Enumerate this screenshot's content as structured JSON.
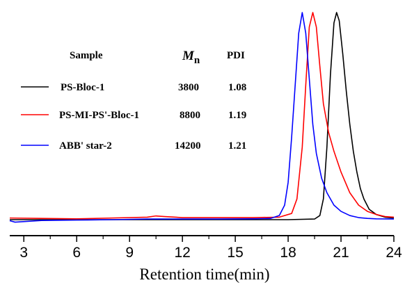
{
  "chart_data": {
    "type": "line",
    "xlabel": "Retention time(min)",
    "ylabel": "",
    "xlim": [
      2.2,
      24
    ],
    "x_ticks": [
      3,
      6,
      9,
      12,
      15,
      18,
      21,
      24
    ],
    "x_tick_labels": [
      "3",
      "6",
      "9",
      "12",
      "15",
      "18",
      "21",
      "24"
    ],
    "grid": false,
    "legend": {
      "placement": "top-left",
      "headers": {
        "sample": "Sample",
        "mn_main": "M",
        "mn_sub": "n",
        "pdi": "PDI"
      },
      "rows": [
        {
          "sample": "PS-Bloc-1",
          "mn": "3800",
          "pdi": "1.08",
          "color": "#000000"
        },
        {
          "sample": "PS-MI-PS'-Bloc-1",
          "mn": "8800",
          "pdi": "1.19",
          "color": "#ff0000"
        },
        {
          "sample": "ABB' star-2",
          "mn": "14200",
          "pdi": "1.21",
          "color": "#0000ff"
        }
      ]
    },
    "series": [
      {
        "name": "PS-Bloc-1",
        "color": "#000000",
        "x": [
          2.2,
          4,
          6,
          8,
          10,
          12,
          14,
          16,
          18,
          19.5,
          19.8,
          20.0,
          20.2,
          20.4,
          20.6,
          20.75,
          20.9,
          21.1,
          21.3,
          21.5,
          21.7,
          21.9,
          22.1,
          22.3,
          22.6,
          23.0,
          23.5,
          24.0
        ],
        "y": [
          0.0,
          0.0,
          0.0,
          0.0,
          0.0,
          0.0,
          0.0,
          0.0,
          0.0,
          0.003,
          0.02,
          0.1,
          0.35,
          0.7,
          0.95,
          1.0,
          0.96,
          0.8,
          0.62,
          0.46,
          0.33,
          0.23,
          0.15,
          0.1,
          0.05,
          0.025,
          0.012,
          0.008
        ]
      },
      {
        "name": "PS-MI-PS'-Bloc-1",
        "color": "#ff0000",
        "x": [
          2.2,
          4,
          6,
          8,
          10,
          10.5,
          11,
          12,
          14,
          16,
          17.5,
          18.2,
          18.5,
          18.8,
          19.0,
          19.2,
          19.4,
          19.6,
          19.8,
          20.0,
          20.3,
          20.6,
          21.0,
          21.5,
          22.0,
          22.5,
          23.0,
          23.5,
          24.0
        ],
        "y": [
          0.008,
          0.006,
          0.004,
          0.008,
          0.012,
          0.018,
          0.015,
          0.01,
          0.01,
          0.01,
          0.012,
          0.03,
          0.1,
          0.35,
          0.65,
          0.93,
          1.0,
          0.93,
          0.74,
          0.56,
          0.42,
          0.33,
          0.23,
          0.13,
          0.07,
          0.04,
          0.025,
          0.015,
          0.012
        ]
      },
      {
        "name": "ABB' star-2",
        "color": "#0000ff",
        "x": [
          2.2,
          2.5,
          4,
          6,
          8,
          10,
          12,
          14,
          16,
          17.0,
          17.5,
          17.8,
          18.0,
          18.2,
          18.4,
          18.6,
          18.8,
          19.0,
          19.2,
          19.4,
          19.6,
          19.9,
          20.2,
          20.6,
          21.0,
          21.5,
          22.0,
          22.5,
          23.0,
          24.0
        ],
        "y": [
          -0.005,
          -0.012,
          -0.004,
          -0.002,
          0.0,
          0.003,
          0.003,
          0.003,
          0.004,
          0.006,
          0.02,
          0.07,
          0.18,
          0.4,
          0.65,
          0.9,
          1.0,
          0.9,
          0.68,
          0.46,
          0.32,
          0.2,
          0.13,
          0.07,
          0.04,
          0.02,
          0.01,
          0.006,
          0.004,
          0.003
        ]
      }
    ]
  }
}
